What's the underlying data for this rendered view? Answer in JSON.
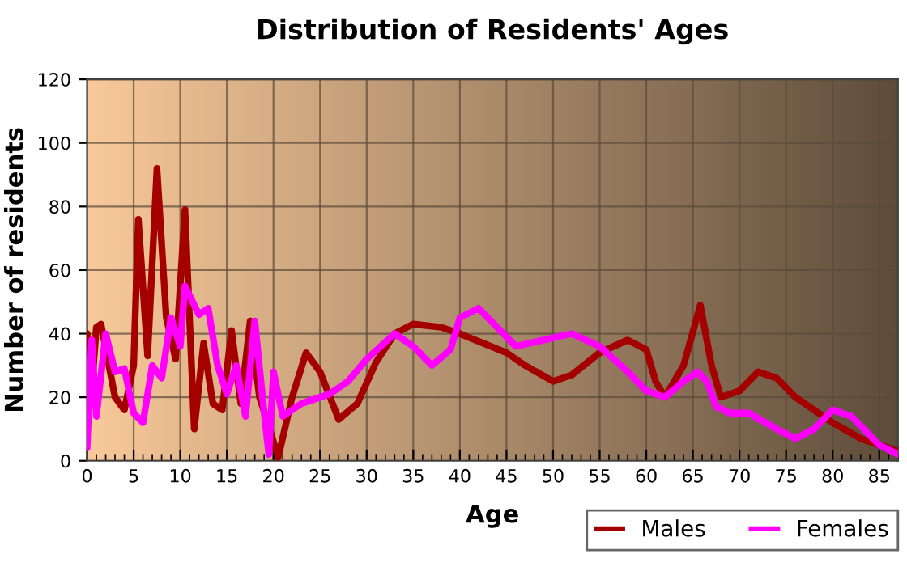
{
  "chart_data": {
    "type": "line",
    "title": "Distribution of Residents' Ages",
    "xlabel": "Age",
    "ylabel": "Number of residents",
    "xlim": [
      0,
      87
    ],
    "xticks": [
      0,
      5,
      10,
      15,
      20,
      25,
      30,
      35,
      40,
      45,
      50,
      55,
      60,
      65,
      70,
      75,
      80,
      85
    ],
    "ylim": [
      0,
      120
    ],
    "yticks": [
      0,
      20,
      40,
      60,
      80,
      100,
      120
    ],
    "grid": true,
    "legend": "bottom right",
    "marker": "none",
    "line_style": "solid",
    "series": [
      {
        "name": "Males",
        "color": "#a50000",
        "x": [
          0,
          0.5,
          1,
          1.5,
          3,
          4,
          5,
          5.5,
          6.5,
          7.5,
          8.5,
          9.5,
          10.5,
          11.5,
          12.5,
          13.5,
          14.5,
          15.5,
          16.5,
          17.5,
          18.5,
          19.5,
          20.5,
          22,
          23.5,
          25,
          27,
          29,
          31,
          33,
          35,
          38,
          40,
          45,
          47,
          50,
          52,
          55,
          58,
          60,
          61,
          62,
          64,
          65.8,
          67,
          68,
          70,
          72,
          74,
          76,
          80,
          83,
          87
        ],
        "values": [
          40,
          23,
          42,
          43,
          20,
          16,
          30,
          76,
          33,
          92,
          45,
          32,
          79,
          10,
          37,
          18,
          16,
          41,
          18,
          44,
          20,
          11,
          1,
          20,
          34,
          28,
          13,
          18,
          31,
          40,
          43,
          42,
          40,
          34,
          30,
          25,
          27,
          34,
          38,
          35,
          25,
          20,
          30,
          49,
          30,
          20,
          22,
          28,
          26,
          20,
          12,
          7,
          3
        ]
      },
      {
        "name": "Females",
        "color": "#ff00ff",
        "x": [
          0,
          0.5,
          1,
          2,
          3,
          4,
          5,
          6,
          7,
          8,
          9,
          10,
          10.5,
          12,
          13,
          14,
          15,
          16,
          17,
          18,
          19,
          19.5,
          20,
          21,
          23,
          26,
          28,
          30,
          33,
          35,
          37,
          39,
          40,
          42,
          44,
          46,
          49,
          52,
          55,
          58,
          60,
          62,
          64,
          65.5,
          66.5,
          67.5,
          69,
          71,
          74,
          76,
          78,
          80,
          82,
          85,
          87
        ],
        "values": [
          4,
          38,
          14,
          40,
          28,
          29,
          15,
          12,
          30,
          26,
          45,
          36,
          55,
          46,
          48,
          30,
          21,
          30,
          14,
          44,
          15,
          2,
          28,
          14,
          18,
          21,
          25,
          32,
          40,
          36,
          30,
          35,
          45,
          48,
          42,
          36,
          38,
          40,
          36,
          28,
          22,
          20,
          25,
          28,
          25,
          17,
          15,
          15,
          10,
          7,
          10,
          16,
          14,
          5,
          2
        ]
      }
    ]
  }
}
